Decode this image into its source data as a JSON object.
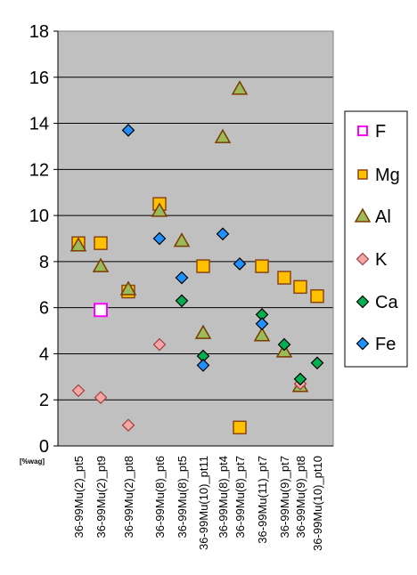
{
  "chart_data": {
    "type": "scatter",
    "title": "",
    "xlabel": "",
    "ylabel": "",
    "unit_label": "[%wag]",
    "ylim": [
      0,
      18
    ],
    "yticks": [
      0,
      2,
      4,
      6,
      8,
      10,
      12,
      14,
      16,
      18
    ],
    "grid": true,
    "legend_position": "right",
    "categories": [
      "36-99Mu(2)_pt5",
      "36-99Mu(2)_pt9",
      "36-99Mu(2)_pt8",
      "36-99Mu(8)_pt6",
      "36-99Mu(8)_pt5",
      "36-99Mu(10)_pt11",
      "36-99Mu(8)_pt4",
      "36-99Mu(8)_pt7",
      "36-99Mu(11)_pt7",
      "36-99Mu(9)_pt7",
      "36-99Mu(9)_pt8",
      "36-99Mu(10)_pt10"
    ],
    "series": [
      {
        "name": "F",
        "marker": "square-open",
        "color": "#ff00ff",
        "values": [
          null,
          5.9,
          null,
          null,
          null,
          null,
          null,
          null,
          null,
          null,
          null,
          null
        ]
      },
      {
        "name": "Mg",
        "marker": "square",
        "color": "#ffc000",
        "values": [
          8.8,
          8.8,
          6.7,
          10.5,
          null,
          7.8,
          null,
          0.8,
          7.8,
          7.3,
          6.9,
          6.5
        ]
      },
      {
        "name": "Al",
        "marker": "triangle",
        "color": "#9bbb59",
        "values": [
          8.7,
          7.8,
          6.8,
          10.2,
          8.9,
          4.9,
          13.4,
          15.5,
          4.8,
          4.1,
          2.6,
          null
        ]
      },
      {
        "name": "K",
        "marker": "diamond",
        "color": "#f4a6a6",
        "values": [
          2.4,
          2.1,
          0.9,
          4.4,
          null,
          null,
          null,
          null,
          null,
          null,
          2.7,
          null
        ]
      },
      {
        "name": "Ca",
        "marker": "diamond",
        "color": "#00b050",
        "values": [
          null,
          null,
          null,
          null,
          6.3,
          3.9,
          null,
          null,
          5.7,
          4.4,
          2.9,
          3.6
        ]
      },
      {
        "name": "Fe",
        "marker": "diamond",
        "color": "#1e90ff",
        "values": [
          null,
          null,
          13.7,
          9.0,
          7.3,
          3.5,
          9.2,
          7.9,
          5.3,
          null,
          null,
          null
        ]
      }
    ]
  }
}
